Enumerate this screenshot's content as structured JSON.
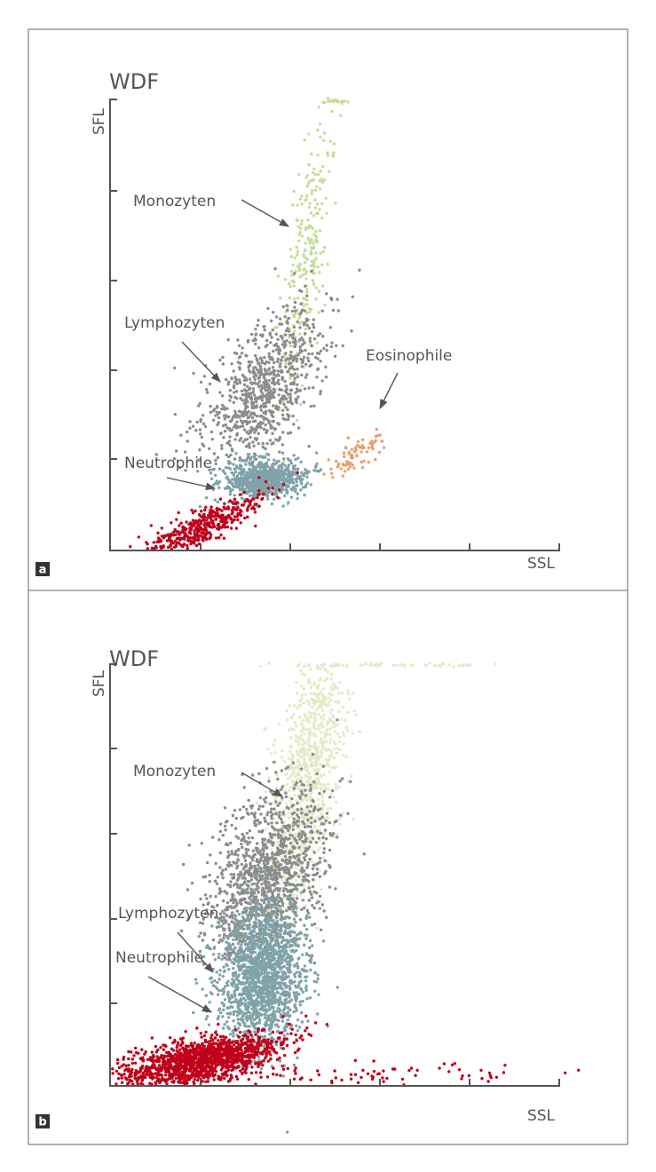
{
  "panels": [
    {
      "label": "a",
      "title": "WDF",
      "y_axis": "SFL",
      "x_axis": "SSL",
      "annotations": [
        "Monozyten",
        "Lymphozyten",
        "Eosinophile",
        "Neutrophile"
      ]
    },
    {
      "label": "b",
      "title": "WDF",
      "y_axis": "SFL",
      "x_axis": "SSL",
      "annotations": [
        "Monozyten",
        "Lymphozyten",
        "Neutrophile"
      ]
    }
  ]
}
